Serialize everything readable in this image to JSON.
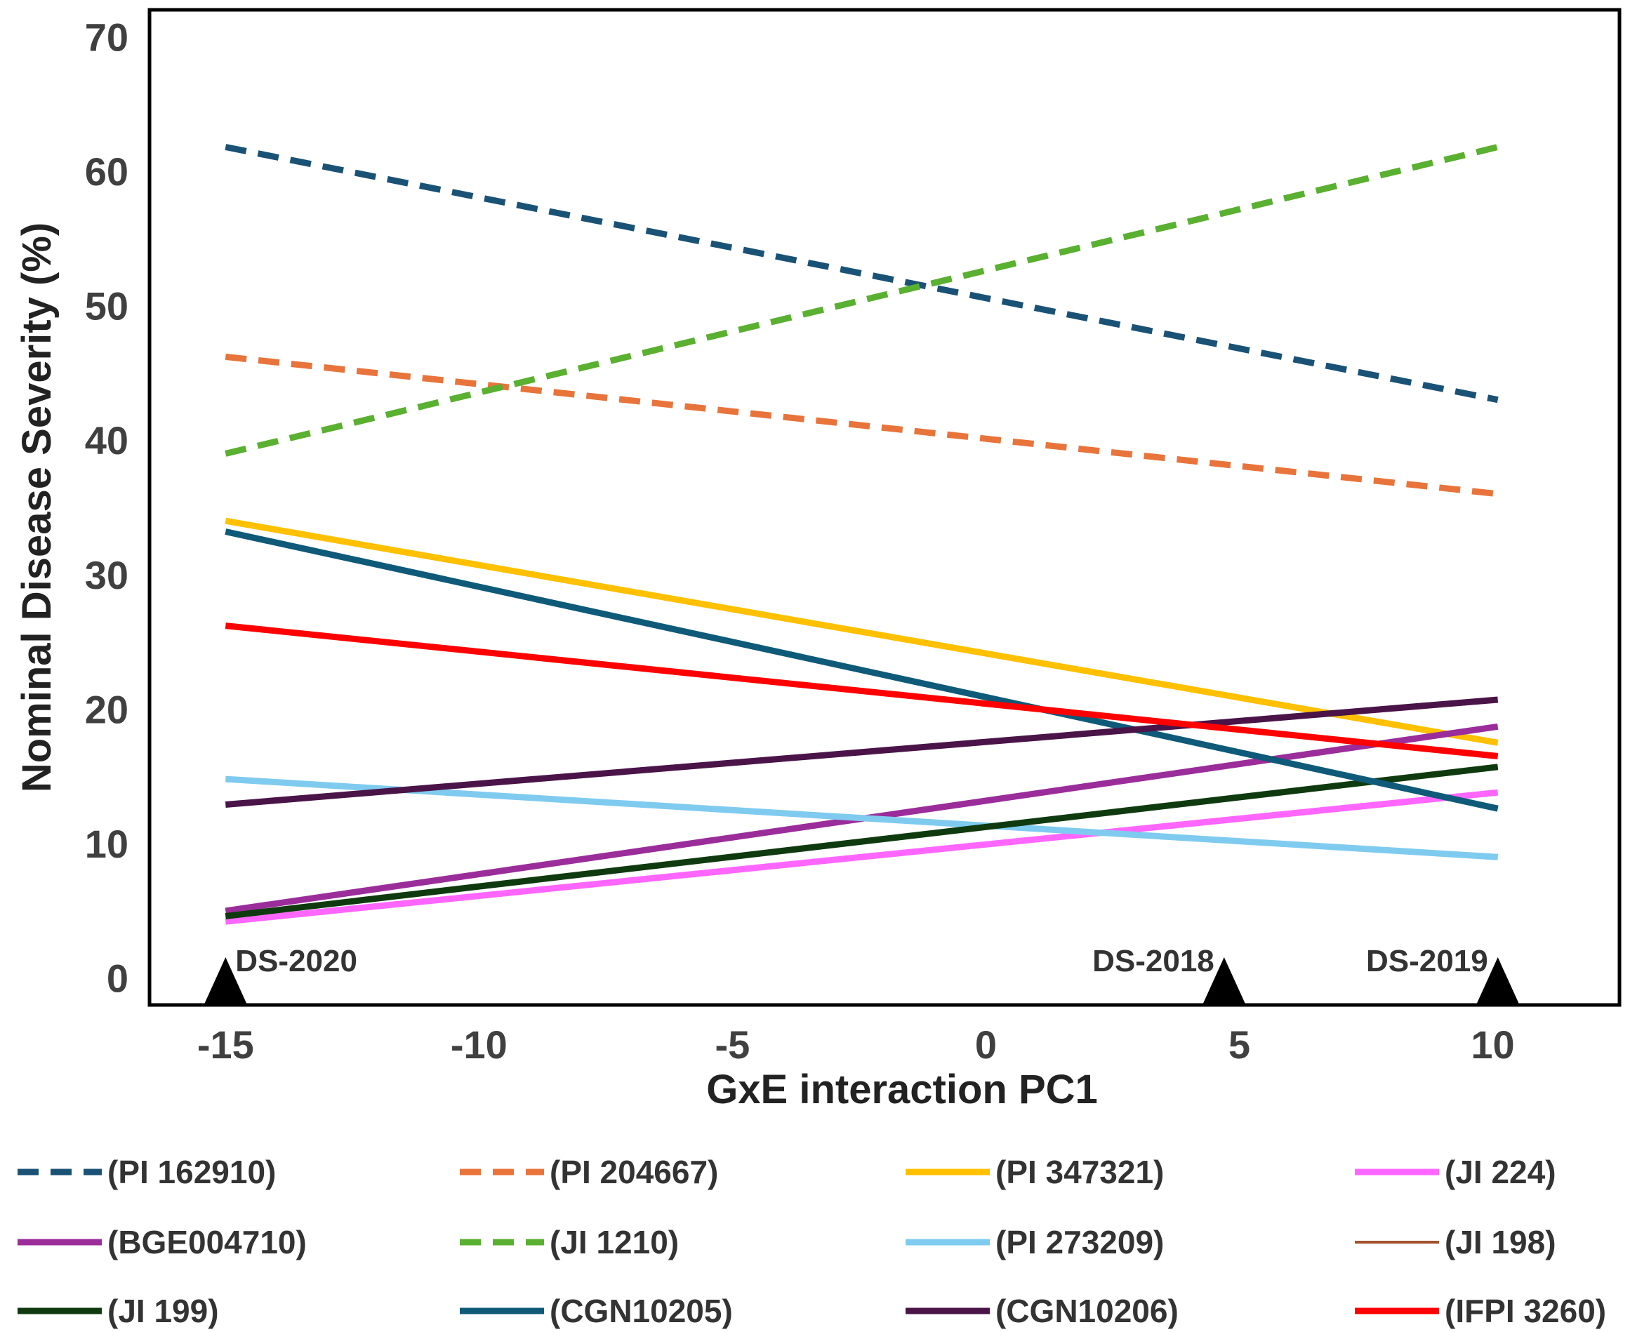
{
  "chart_data": {
    "type": "line",
    "title": "",
    "xlabel": "GxE interaction PC1",
    "ylabel": "Nominal Disease Severity (%)",
    "xlim": [
      -16.5,
      12.5
    ],
    "ylim": [
      -2,
      72
    ],
    "x_ticks": [
      -15,
      -10,
      -5,
      0,
      5,
      10
    ],
    "y_ticks": [
      0,
      10,
      20,
      30,
      40,
      50,
      60,
      70
    ],
    "grid": false,
    "legend_position": "bottom",
    "environments": [
      {
        "label": "DS-2020",
        "x": -15
      },
      {
        "label": "DS-2018",
        "x": 4.7
      },
      {
        "label": "DS-2019",
        "x": 10.1
      }
    ],
    "series": [
      {
        "name": "(PI 162910)",
        "color": "#1a5276",
        "dashed": true,
        "x": [
          -15,
          10.1
        ],
        "y": [
          61.8,
          43.0
        ]
      },
      {
        "name": "(PI 204667)",
        "color": "#e8743b",
        "dashed": true,
        "x": [
          -15,
          10.1
        ],
        "y": [
          46.2,
          36.0
        ]
      },
      {
        "name": "(PI 347321)",
        "color": "#ffc000",
        "dashed": false,
        "x": [
          -15,
          10.1
        ],
        "y": [
          34.0,
          17.5
        ]
      },
      {
        "name": "(JI 224)",
        "color": "#ff66ff",
        "dashed": false,
        "x": [
          -15,
          10.1
        ],
        "y": [
          4.2,
          13.8
        ]
      },
      {
        "name": "(BGE004710)",
        "color": "#9b2d9b",
        "dashed": false,
        "x": [
          -15,
          10.1
        ],
        "y": [
          5.0,
          18.7
        ]
      },
      {
        "name": "(JI 1210)",
        "color": "#5ab030",
        "dashed": true,
        "x": [
          -15,
          10.1
        ],
        "y": [
          39.0,
          61.8
        ]
      },
      {
        "name": "(PI 273209)",
        "color": "#7fcbf0",
        "dashed": false,
        "x": [
          -15,
          10.1
        ],
        "y": [
          14.8,
          9.0
        ]
      },
      {
        "name": "(JI 198)",
        "color": "#a0522d",
        "dashed": false,
        "thin": true,
        "x": [
          -15,
          10.1
        ],
        "y": [
          4.6,
          15.7
        ]
      },
      {
        "name": "(JI 199)",
        "color": "#0f3a0f",
        "dashed": false,
        "x": [
          -15,
          10.1
        ],
        "y": [
          4.6,
          15.7
        ]
      },
      {
        "name": "(CGN10205)",
        "color": "#0e5a78",
        "dashed": false,
        "x": [
          -15,
          10.1
        ],
        "y": [
          33.2,
          12.6
        ]
      },
      {
        "name": "(CGN10206)",
        "color": "#4a1448",
        "dashed": false,
        "x": [
          -15,
          10.1
        ],
        "y": [
          12.9,
          20.7
        ]
      },
      {
        "name": "(IFPI 3260)",
        "color": "#ff0000",
        "dashed": false,
        "x": [
          -15,
          10.1
        ],
        "y": [
          26.2,
          16.5
        ]
      }
    ]
  }
}
